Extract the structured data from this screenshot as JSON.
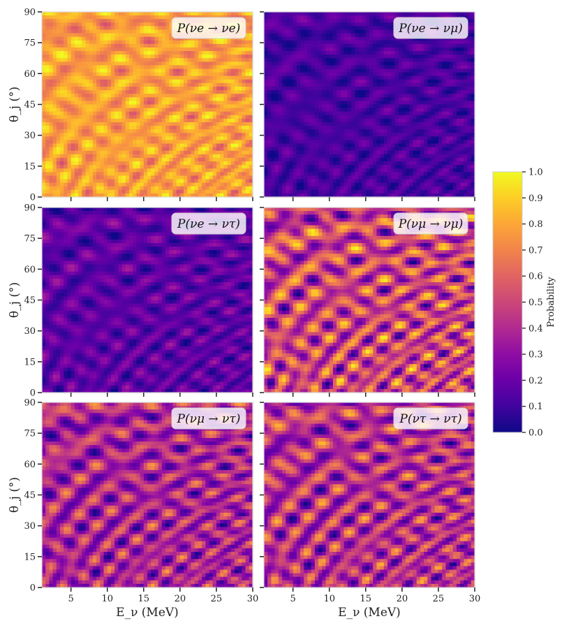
{
  "chart_data": {
    "type": "heatmap",
    "x_range": [
      1,
      30
    ],
    "y_range": [
      0,
      90
    ],
    "x_ticks": [
      "5",
      "10",
      "15",
      "20",
      "25",
      "30"
    ],
    "x_tick_values": [
      5,
      10,
      15,
      20,
      25,
      30
    ],
    "y_ticks": [
      "0",
      "15",
      "30",
      "45",
      "60",
      "75",
      "90"
    ],
    "y_tick_values": [
      0,
      15,
      30,
      45,
      60,
      75,
      90
    ],
    "xlabel": "E_ν (MeV)",
    "ylabel": "θ_j (°)",
    "colormap": "plasma",
    "colorbar": {
      "label": "Probability",
      "range": [
        0,
        1
      ],
      "ticks": [
        "0.0",
        "0.1",
        "0.2",
        "0.3",
        "0.4",
        "0.5",
        "0.6",
        "0.7",
        "0.8",
        "0.9",
        "1.0"
      ]
    },
    "panels": [
      {
        "label": "P(νe → νe)",
        "mean_probability": 0.78
      },
      {
        "label": "P(νe → νμ)",
        "mean_probability": 0.12
      },
      {
        "label": "P(νe → ντ)",
        "mean_probability": 0.17
      },
      {
        "label": "P(νμ → νμ)",
        "mean_probability": 0.5
      },
      {
        "label": "P(νμ → ντ)",
        "mean_probability": 0.38
      },
      {
        "label": "P(ντ → ντ)",
        "mean_probability": 0.42
      }
    ]
  }
}
